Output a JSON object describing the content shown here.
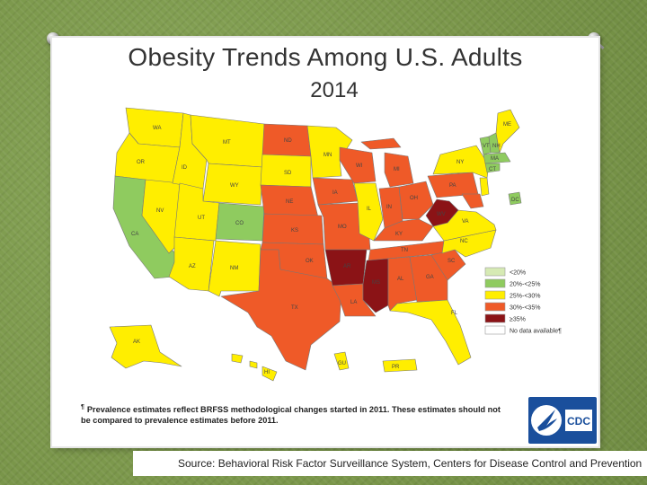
{
  "slide": {
    "title": "Obesity Trends Among U.S. Adults",
    "subtitle": "2014",
    "footnote_mark": "¶",
    "footnote": "Prevalence estimates reflect BRFSS methodological changes started in 2011. These estimates should not be compared to prevalence estimates before 2011.",
    "source": "Source: Behavioral Risk Factor Surveillance System, Centers for Disease Control and Prevention",
    "logo_text": "CDC"
  },
  "legend": [
    {
      "label": "<20%",
      "color": "#d6eab4"
    },
    {
      "label": "20%-<25%",
      "color": "#8fcb5f"
    },
    {
      "label": "25%-<30%",
      "color": "#ffee00"
    },
    {
      "label": "30%-<35%",
      "color": "#ef5a28"
    },
    {
      "label": "≥35%",
      "color": "#8b1316"
    },
    {
      "label": "No data available¶",
      "color": "#ffffff"
    }
  ],
  "states": {
    "WA": "WA",
    "OR": "OR",
    "CA": "CA",
    "NV": "NV",
    "ID": "ID",
    "MT": "MT",
    "WY": "WY",
    "UT": "UT",
    "AZ": "AZ",
    "CO": "CO",
    "NM": "NM",
    "ND": "ND",
    "SD": "SD",
    "NE": "NE",
    "KS": "KS",
    "OK": "OK",
    "TX": "TX",
    "MN": "MN",
    "IA": "IA",
    "MO": "MO",
    "AR": "AR",
    "LA": "LA",
    "WI": "WI",
    "IL": "IL",
    "MI": "MI",
    "IN": "IN",
    "OH": "OH",
    "KY": "KY",
    "TN": "TN",
    "MS": "MS",
    "AL": "AL",
    "GA": "GA",
    "FL": "FL",
    "SC": "SC",
    "NC": "NC",
    "VA": "VA",
    "WV": "WV",
    "PA": "PA",
    "NY": "NY",
    "VT": "VT",
    "NH": "NH",
    "ME": "ME",
    "MA": "MA",
    "CT": "CT",
    "DC": "DC",
    "AK": "AK",
    "HI": "HI",
    "GU": "GU",
    "PR": "PR"
  }
}
